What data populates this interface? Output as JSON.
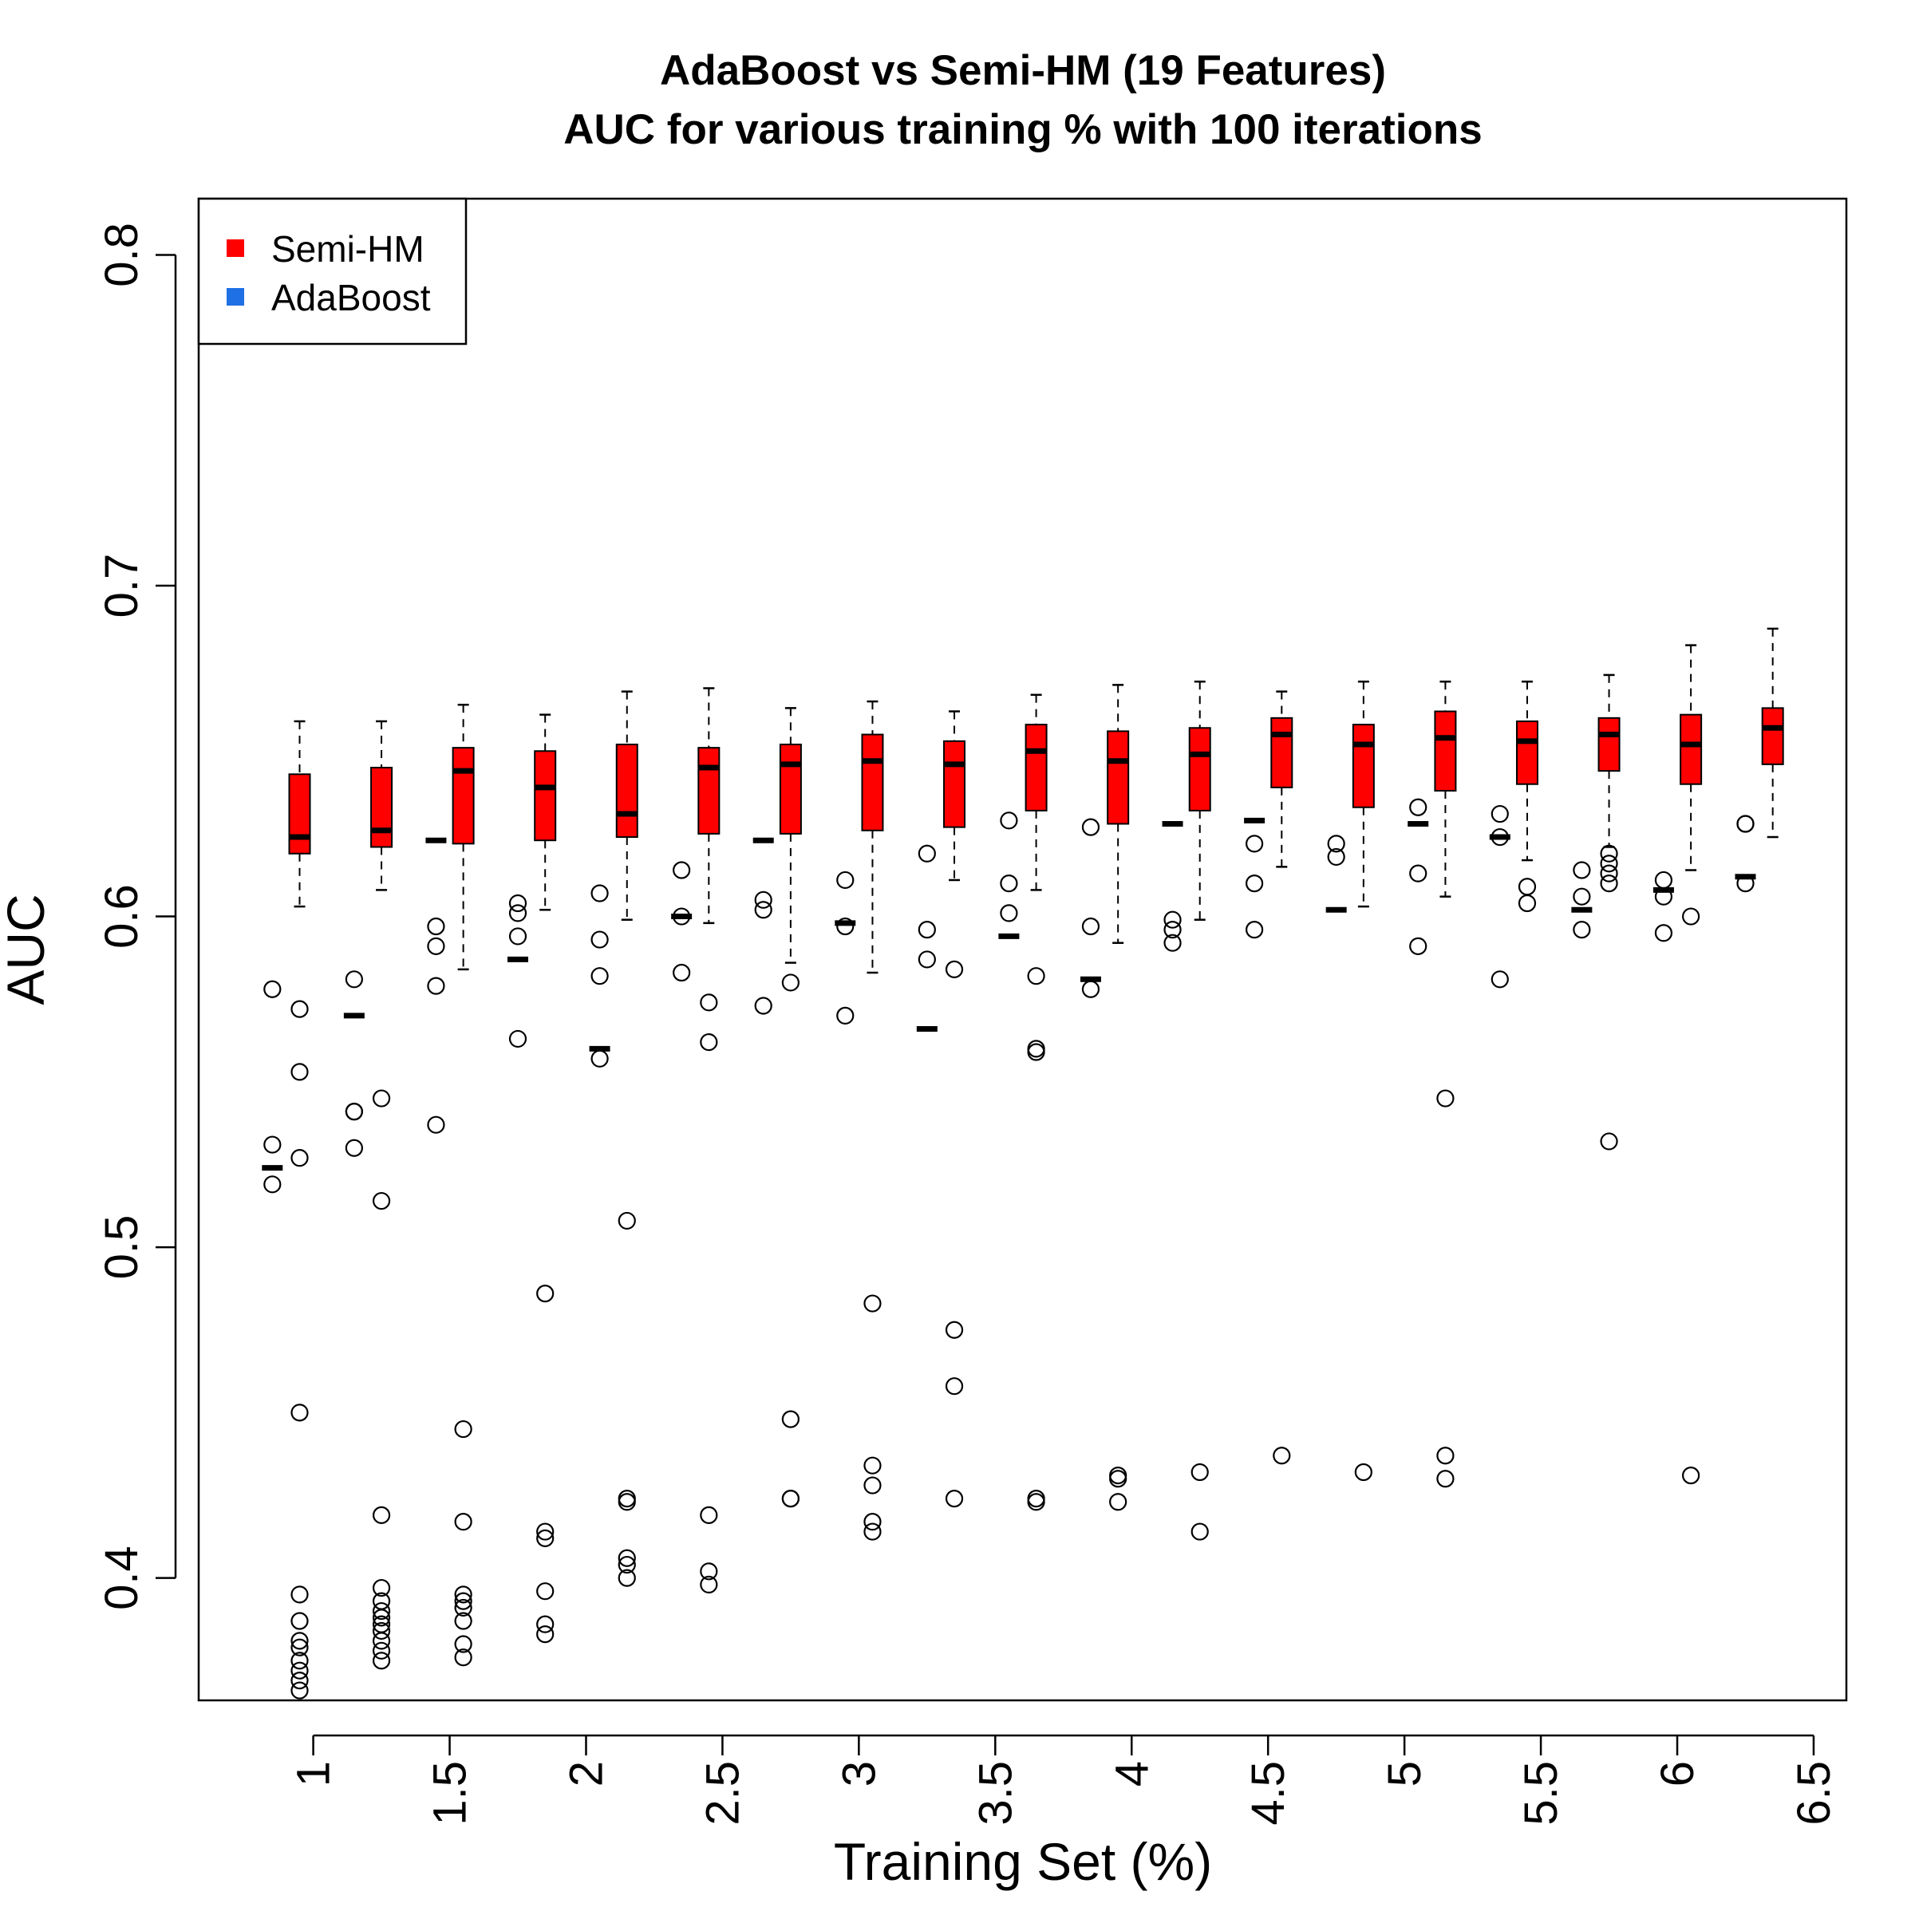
{
  "chart_data": {
    "type": "box",
    "title": "AdaBoost vs Semi-HM (19 Features)",
    "subtitle": "AUC for various training % with 100 iterations",
    "xlabel": "Training Set (%)",
    "ylabel": "AUC",
    "xlim": [
      0.58,
      6.62
    ],
    "ylim": [
      0.363,
      0.817
    ],
    "x_ticks": [
      "1",
      "1.5",
      "2",
      "2.5",
      "3",
      "3.5",
      "4",
      "4.5",
      "5",
      "5.5",
      "6",
      "6.5"
    ],
    "y_ticks": [
      "0.4",
      "0.5",
      "0.6",
      "0.7",
      "0.8"
    ],
    "legend": {
      "position": "top-left",
      "entries": [
        {
          "label": "Semi-HM",
          "color": "#ff0000"
        },
        {
          "label": "AdaBoost",
          "color": "#1f6fe5"
        }
      ]
    },
    "series": [
      {
        "name": "Semi-HM",
        "color": "#ff0000",
        "boxes": [
          {
            "x": 0.95,
            "q1": 0.619,
            "median": 0.624,
            "q3": 0.643,
            "whisker_low": 0.603,
            "whisker_high": 0.659
          },
          {
            "x": 1.25,
            "q1": 0.621,
            "median": 0.626,
            "q3": 0.645,
            "whisker_low": 0.608,
            "whisker_high": 0.659
          },
          {
            "x": 1.55,
            "q1": 0.622,
            "median": 0.644,
            "q3": 0.651,
            "whisker_low": 0.584,
            "whisker_high": 0.664
          },
          {
            "x": 1.85,
            "q1": 0.623,
            "median": 0.639,
            "q3": 0.65,
            "whisker_low": 0.602,
            "whisker_high": 0.661
          },
          {
            "x": 2.15,
            "q1": 0.624,
            "median": 0.631,
            "q3": 0.652,
            "whisker_low": 0.599,
            "whisker_high": 0.668
          },
          {
            "x": 2.45,
            "q1": 0.625,
            "median": 0.645,
            "q3": 0.651,
            "whisker_low": 0.598,
            "whisker_high": 0.669
          },
          {
            "x": 2.75,
            "q1": 0.625,
            "median": 0.646,
            "q3": 0.652,
            "whisker_low": 0.586,
            "whisker_high": 0.663
          },
          {
            "x": 3.05,
            "q1": 0.626,
            "median": 0.647,
            "q3": 0.655,
            "whisker_low": 0.583,
            "whisker_high": 0.665
          },
          {
            "x": 3.35,
            "q1": 0.627,
            "median": 0.646,
            "q3": 0.653,
            "whisker_low": 0.611,
            "whisker_high": 0.662
          },
          {
            "x": 3.65,
            "q1": 0.632,
            "median": 0.65,
            "q3": 0.658,
            "whisker_low": 0.608,
            "whisker_high": 0.667
          },
          {
            "x": 3.95,
            "q1": 0.628,
            "median": 0.647,
            "q3": 0.656,
            "whisker_low": 0.592,
            "whisker_high": 0.67
          },
          {
            "x": 4.25,
            "q1": 0.632,
            "median": 0.649,
            "q3": 0.657,
            "whisker_low": 0.599,
            "whisker_high": 0.671
          },
          {
            "x": 4.55,
            "q1": 0.639,
            "median": 0.655,
            "q3": 0.66,
            "whisker_low": 0.615,
            "whisker_high": 0.668
          },
          {
            "x": 4.85,
            "q1": 0.633,
            "median": 0.652,
            "q3": 0.658,
            "whisker_low": 0.603,
            "whisker_high": 0.671
          },
          {
            "x": 5.15,
            "q1": 0.638,
            "median": 0.654,
            "q3": 0.662,
            "whisker_low": 0.606,
            "whisker_high": 0.671
          },
          {
            "x": 5.45,
            "q1": 0.64,
            "median": 0.653,
            "q3": 0.659,
            "whisker_low": 0.617,
            "whisker_high": 0.671
          },
          {
            "x": 5.75,
            "q1": 0.644,
            "median": 0.655,
            "q3": 0.66,
            "whisker_low": 0.621,
            "whisker_high": 0.673
          },
          {
            "x": 6.05,
            "q1": 0.64,
            "median": 0.652,
            "q3": 0.661,
            "whisker_low": 0.614,
            "whisker_high": 0.682
          },
          {
            "x": 6.35,
            "q1": 0.646,
            "median": 0.657,
            "q3": 0.663,
            "whisker_low": 0.624,
            "whisker_high": 0.687
          }
        ]
      },
      {
        "name": "AdaBoost",
        "color": "#1f6fe5",
        "boxes": [
          {
            "x": 0.85,
            "median": 0.524,
            "outliers": [
              0.531,
              0.519,
              0.578
            ]
          },
          {
            "x": 1.15,
            "median": 0.57,
            "outliers": [
              0.581,
              0.541,
              0.541,
              0.53
            ]
          },
          {
            "x": 1.45,
            "median": 0.623,
            "outliers": [
              0.597,
              0.591,
              0.579,
              0.537
            ]
          },
          {
            "x": 1.75,
            "median": 0.587,
            "outliers": [
              0.604,
              0.601,
              0.594,
              0.563
            ]
          },
          {
            "x": 2.05,
            "median": 0.56,
            "outliers": [
              0.607,
              0.593,
              0.582,
              0.557
            ]
          },
          {
            "x": 2.35,
            "median": 0.6,
            "outliers": [
              0.614,
              0.6,
              0.583
            ]
          },
          {
            "x": 2.65,
            "median": 0.623,
            "outliers": [
              0.605,
              0.602,
              0.573
            ]
          },
          {
            "x": 2.95,
            "median": 0.598,
            "outliers": [
              0.611,
              0.597,
              0.57
            ]
          },
          {
            "x": 3.25,
            "median": 0.566,
            "outliers": [
              0.619,
              0.596,
              0.587
            ]
          },
          {
            "x": 3.55,
            "median": 0.594,
            "outliers": [
              0.629,
              0.61,
              0.601
            ]
          },
          {
            "x": 3.85,
            "median": 0.581,
            "outliers": [
              0.627,
              0.597,
              0.578
            ]
          },
          {
            "x": 4.15,
            "median": 0.628,
            "outliers": [
              0.599,
              0.596,
              0.592
            ]
          },
          {
            "x": 4.45,
            "median": 0.629,
            "outliers": [
              0.622,
              0.61,
              0.596
            ]
          },
          {
            "x": 4.75,
            "median": 0.602,
            "outliers": [
              0.622,
              0.618
            ]
          },
          {
            "x": 5.05,
            "median": 0.628,
            "outliers": [
              0.633,
              0.613,
              0.591
            ]
          },
          {
            "x": 5.35,
            "median": 0.624,
            "outliers": [
              0.631,
              0.624,
              0.581
            ]
          },
          {
            "x": 5.65,
            "median": 0.602,
            "outliers": [
              0.614,
              0.606,
              0.596
            ]
          },
          {
            "x": 5.95,
            "median": 0.608,
            "outliers": [
              0.611,
              0.606,
              0.595
            ]
          },
          {
            "x": 6.25,
            "median": 0.612,
            "outliers": [
              0.628,
              0.628,
              0.61
            ]
          }
        ]
      }
    ],
    "semi_hm_outliers": [
      {
        "x": 0.95,
        "values": [
          0.572,
          0.553,
          0.527,
          0.45,
          0.395,
          0.387,
          0.381,
          0.379,
          0.375,
          0.372,
          0.369,
          0.366
        ]
      },
      {
        "x": 1.25,
        "values": [
          0.545,
          0.514,
          0.419,
          0.397,
          0.393,
          0.39,
          0.388,
          0.386,
          0.384,
          0.381,
          0.378,
          0.375
        ]
      },
      {
        "x": 1.55,
        "values": [
          0.445,
          0.417,
          0.395,
          0.393,
          0.391,
          0.387,
          0.38,
          0.376
        ]
      },
      {
        "x": 1.85,
        "values": [
          0.486,
          0.414,
          0.412,
          0.396,
          0.386,
          0.383
        ]
      },
      {
        "x": 2.15,
        "values": [
          0.508,
          0.424,
          0.423,
          0.406,
          0.404,
          0.4
        ]
      },
      {
        "x": 2.45,
        "values": [
          0.574,
          0.562,
          0.419,
          0.402,
          0.398
        ]
      },
      {
        "x": 2.75,
        "values": [
          0.58,
          0.448,
          0.424,
          0.424
        ]
      },
      {
        "x": 3.05,
        "values": [
          0.483,
          0.434,
          0.428,
          0.417,
          0.414
        ]
      },
      {
        "x": 3.35,
        "values": [
          0.584,
          0.475,
          0.458,
          0.424
        ]
      },
      {
        "x": 3.65,
        "values": [
          0.582,
          0.56,
          0.559,
          0.424,
          0.423
        ]
      },
      {
        "x": 3.95,
        "values": [
          0.431,
          0.43,
          0.423
        ]
      },
      {
        "x": 4.25,
        "values": [
          0.432,
          0.414
        ]
      },
      {
        "x": 4.55,
        "values": [
          0.437
        ]
      },
      {
        "x": 4.85,
        "values": [
          0.432
        ]
      },
      {
        "x": 5.15,
        "values": [
          0.545,
          0.437,
          0.43
        ]
      },
      {
        "x": 5.45,
        "values": [
          0.609,
          0.604
        ]
      },
      {
        "x": 5.75,
        "values": [
          0.619,
          0.616,
          0.613,
          0.61,
          0.532
        ]
      },
      {
        "x": 6.05,
        "values": [
          0.6,
          0.431
        ]
      },
      {
        "x": 6.35,
        "values": []
      }
    ],
    "grid": false
  }
}
